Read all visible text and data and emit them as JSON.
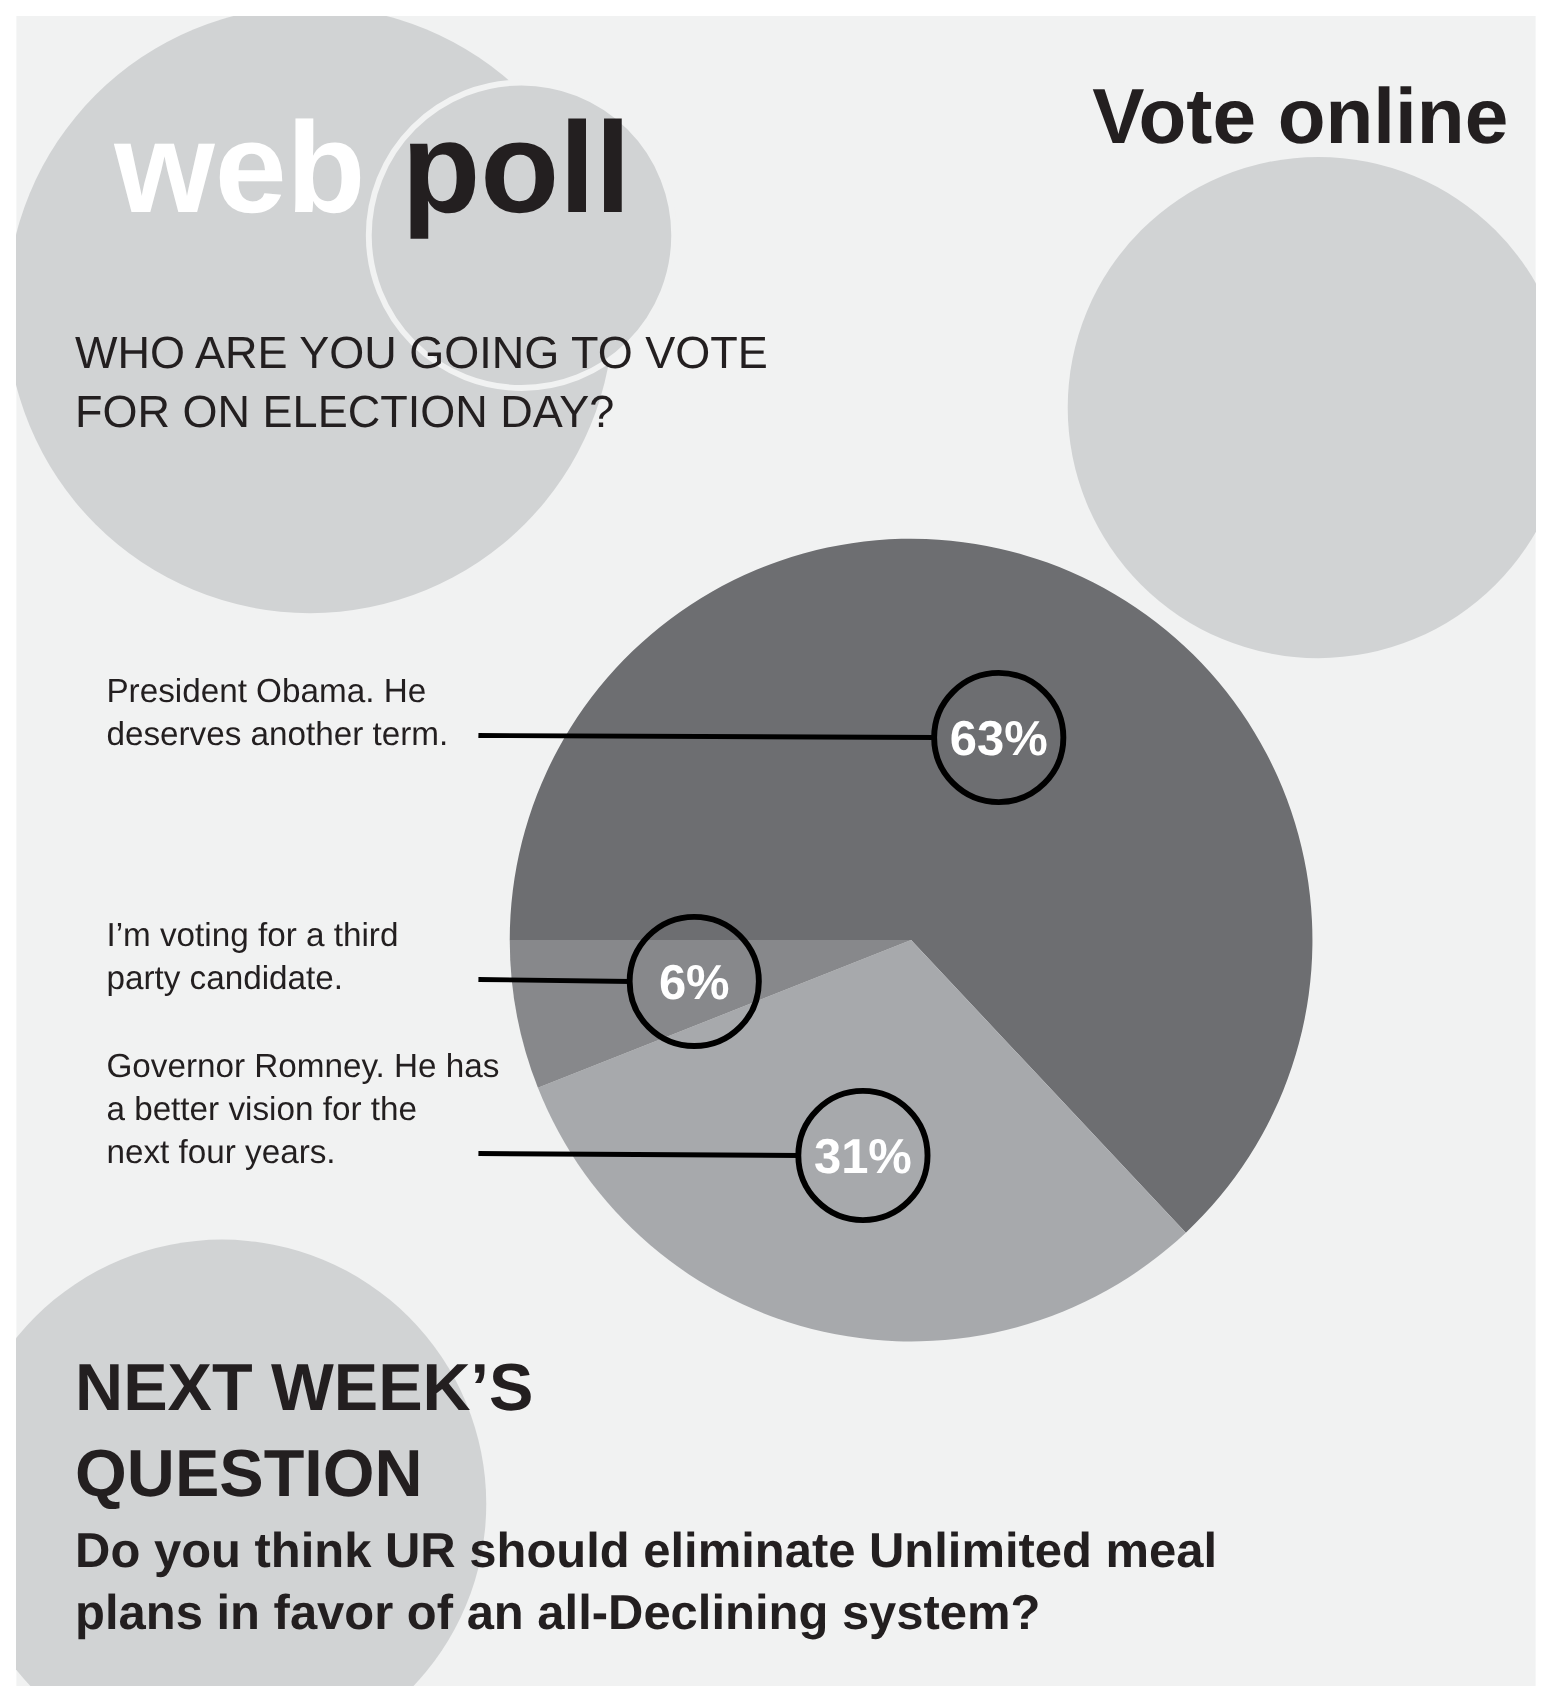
{
  "chart_data": {
    "type": "pie",
    "title": "web poll",
    "subtitle": "WHO ARE YOU GOING TO VOTE FOR ON ELECTION DAY?",
    "categories": [
      "President Obama. He deserves another term.",
      "Governor Romney. He has a better vision for the next four years.",
      "I’m voting for a third party candidate."
    ],
    "values": [
      63,
      31,
      6
    ],
    "colors": [
      "#6d6e71",
      "#a7a9ac",
      "#87888b"
    ],
    "value_labels": [
      "63%",
      "31%",
      "6%"
    ],
    "annotations": [
      "Vote online",
      "NEXT WEEK’S QUESTION",
      "Do you think UR should eliminate Unlimited meal plans in favor of an all-Declining system?"
    ]
  }
}
